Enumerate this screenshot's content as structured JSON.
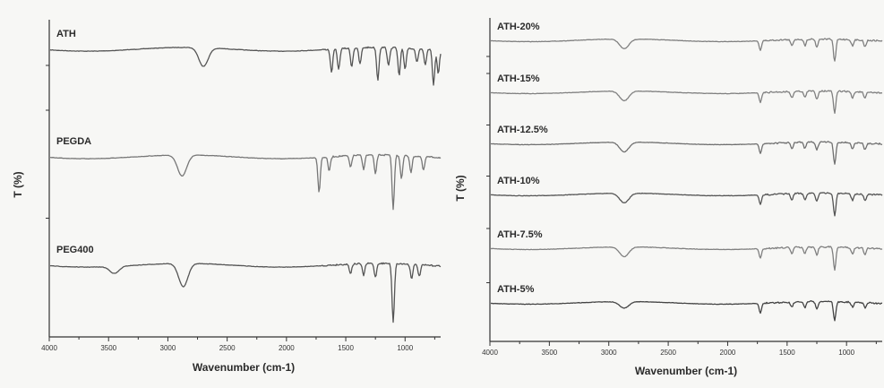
{
  "chart_data": [
    {
      "type": "line",
      "panel": "left",
      "xlabel": "Wavenumber (cm-1)",
      "ylabel": "T (%)",
      "xlim": [
        4000,
        700
      ],
      "x_reversed": true,
      "xticks": [
        4000,
        3500,
        3000,
        2500,
        2000,
        1500,
        1000
      ],
      "series": [
        {
          "name": "ATH",
          "color": "#555555",
          "peaks": [
            [
              2700,
              0.8
            ],
            [
              1620,
              1.0
            ],
            [
              1560,
              0.9
            ],
            [
              1450,
              0.8
            ],
            [
              1380,
              0.7
            ],
            [
              1230,
              1.4
            ],
            [
              1140,
              0.8
            ],
            [
              1050,
              1.2
            ],
            [
              1000,
              0.9
            ],
            [
              900,
              0.6
            ],
            [
              830,
              0.7
            ],
            [
              760,
              1.5
            ],
            [
              720,
              1.0
            ]
          ]
        },
        {
          "name": "PEGDA",
          "color": "#777777",
          "peaks": [
            [
              2880,
              0.9
            ],
            [
              1725,
              1.5
            ],
            [
              1640,
              0.6
            ],
            [
              1460,
              0.5
            ],
            [
              1350,
              0.6
            ],
            [
              1250,
              0.8
            ],
            [
              1100,
              2.3
            ],
            [
              1030,
              1.0
            ],
            [
              950,
              0.7
            ],
            [
              845,
              0.6
            ]
          ]
        },
        {
          "name": "PEG400",
          "color": "#555555",
          "peaks": [
            [
              3450,
              0.3
            ],
            [
              2870,
              1.0
            ],
            [
              1460,
              0.4
            ],
            [
              1350,
              0.5
            ],
            [
              1250,
              0.6
            ],
            [
              1100,
              2.5
            ],
            [
              945,
              0.6
            ],
            [
              880,
              0.5
            ]
          ]
        }
      ]
    },
    {
      "type": "line",
      "panel": "right",
      "xlabel": "Wavenumber (cm-1)",
      "ylabel": "T (%)",
      "xlim": [
        4000,
        700
      ],
      "x_reversed": true,
      "xticks": [
        4000,
        3500,
        3000,
        2500,
        2000,
        1500,
        1000
      ],
      "series": [
        {
          "name": "ATH-20%",
          "color": "#808080",
          "peaks": [
            [
              2870,
              0.6
            ],
            [
              1725,
              0.6
            ],
            [
              1460,
              0.4
            ],
            [
              1350,
              0.4
            ],
            [
              1250,
              0.5
            ],
            [
              1100,
              1.4
            ],
            [
              950,
              0.4
            ],
            [
              845,
              0.4
            ]
          ]
        },
        {
          "name": "ATH-15%",
          "color": "#808080",
          "peaks": [
            [
              2870,
              0.6
            ],
            [
              1725,
              0.6
            ],
            [
              1460,
              0.4
            ],
            [
              1350,
              0.4
            ],
            [
              1250,
              0.5
            ],
            [
              1100,
              1.4
            ],
            [
              950,
              0.4
            ],
            [
              845,
              0.4
            ]
          ]
        },
        {
          "name": "ATH-12.5%",
          "color": "#707070",
          "peaks": [
            [
              2870,
              0.6
            ],
            [
              1725,
              0.6
            ],
            [
              1460,
              0.4
            ],
            [
              1350,
              0.4
            ],
            [
              1250,
              0.5
            ],
            [
              1100,
              1.4
            ],
            [
              950,
              0.4
            ],
            [
              845,
              0.4
            ]
          ]
        },
        {
          "name": "ATH-10%",
          "color": "#555555",
          "peaks": [
            [
              2870,
              0.6
            ],
            [
              1725,
              0.6
            ],
            [
              1460,
              0.4
            ],
            [
              1350,
              0.4
            ],
            [
              1250,
              0.5
            ],
            [
              1100,
              1.4
            ],
            [
              950,
              0.4
            ],
            [
              845,
              0.4
            ]
          ]
        },
        {
          "name": "ATH-7.5%",
          "color": "#808080",
          "peaks": [
            [
              2870,
              0.6
            ],
            [
              1725,
              0.6
            ],
            [
              1460,
              0.4
            ],
            [
              1350,
              0.4
            ],
            [
              1250,
              0.5
            ],
            [
              1100,
              1.4
            ],
            [
              950,
              0.4
            ],
            [
              845,
              0.4
            ]
          ]
        },
        {
          "name": "ATH-5%",
          "color": "#444444",
          "peaks": [
            [
              2870,
              0.4
            ],
            [
              1725,
              0.6
            ],
            [
              1460,
              0.3
            ],
            [
              1350,
              0.4
            ],
            [
              1250,
              0.5
            ],
            [
              1100,
              1.2
            ],
            [
              950,
              0.3
            ],
            [
              845,
              0.3
            ]
          ]
        }
      ]
    }
  ]
}
